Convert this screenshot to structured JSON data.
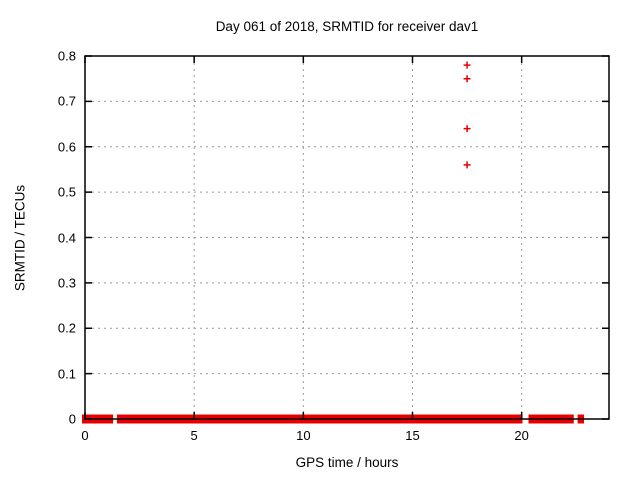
{
  "chart_data": {
    "type": "scatter",
    "title": "Day 061 of 2018, SRMTID for receiver dav1",
    "xlabel": "GPS time / hours",
    "ylabel": "SRMTID / TECUs",
    "xlim": [
      0,
      24
    ],
    "ylim": [
      0,
      0.8
    ],
    "xticks": [
      0,
      5,
      10,
      15,
      20
    ],
    "xtick_labels": [
      "0",
      "5",
      "10",
      "15",
      "20"
    ],
    "yticks": [
      0,
      0.1,
      0.2,
      0.3,
      0.4,
      0.5,
      0.6,
      0.7,
      0.8
    ],
    "ytick_labels": [
      "0",
      "0.1",
      "0.2",
      "0.3",
      "0.4",
      "0.5",
      "0.6",
      "0.7",
      "0.8"
    ],
    "grid": "dashed",
    "legend": "none",
    "marker": "plus",
    "series": [
      {
        "name": "SRMTID",
        "color": "#e60000",
        "outlier_points": [
          {
            "x": 17.5,
            "y": 0.78
          },
          {
            "x": 17.5,
            "y": 0.75
          },
          {
            "x": 17.5,
            "y": 0.64
          },
          {
            "x": 17.5,
            "y": 0.56
          }
        ],
        "baseline_y": 0,
        "baseline_segments_hours": [
          [
            0,
            1.15
          ],
          [
            1.6,
            19.9
          ],
          [
            20.45,
            22.25
          ],
          [
            22.7,
            22.72
          ]
        ]
      }
    ],
    "colors": {
      "data": "#e60000",
      "grid": "#999999",
      "border": "#000000",
      "background": "#ffffff",
      "text": "#000000"
    }
  }
}
